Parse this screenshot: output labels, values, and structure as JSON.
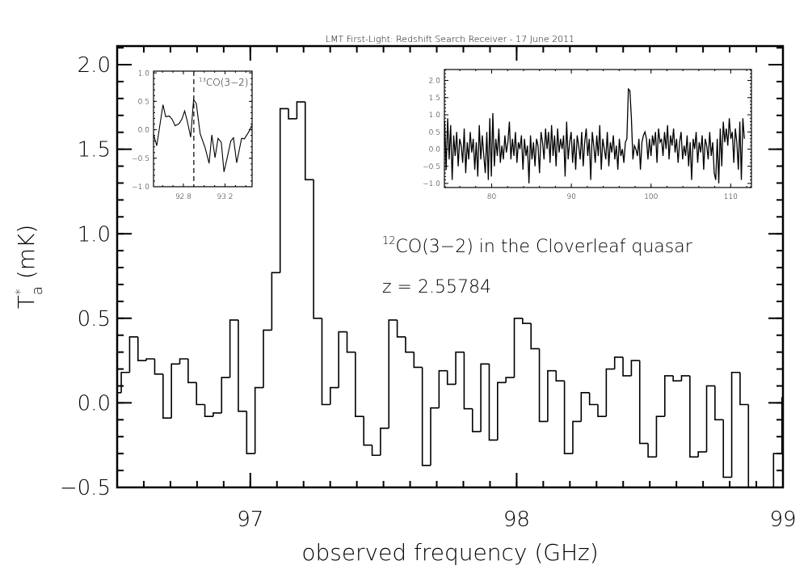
{
  "chart_data": [
    {
      "type": "line",
      "style": "histogram-step",
      "title": "LMT First-Light: Redshift Search Receiver - 17 June 2011",
      "xlabel": "observed frequency (GHz)",
      "ylabel_main": "T",
      "ylabel_sup": "*",
      "ylabel_sub": "a",
      "ylabel_unit": " (mK)",
      "xlim": [
        96.5,
        99.0
      ],
      "ylim": [
        -0.5,
        2.11
      ],
      "xticks": [
        97,
        98,
        99
      ],
      "xtick_labels": [
        "97",
        "98",
        "99"
      ],
      "yticks": [
        2.0,
        1.5,
        1.0,
        0.5,
        0.0,
        -0.5
      ],
      "ytick_labels": [
        "2.0",
        "1.5",
        "1.0",
        "0.5",
        "0.0",
        "−0.5"
      ],
      "annotation_sup": "12",
      "annotation": "CO(3−2) in the Cloverleaf quasar",
      "annotation2": "z = 2.55784",
      "bin_start": 96.484,
      "bin_width": 0.0314,
      "values": [
        0.06,
        0.18,
        0.39,
        0.25,
        0.26,
        0.17,
        -0.09,
        0.23,
        0.26,
        0.12,
        -0.01,
        -0.08,
        -0.06,
        0.15,
        0.49,
        -0.05,
        -0.3,
        0.09,
        0.43,
        0.77,
        1.74,
        1.68,
        1.78,
        1.32,
        0.5,
        -0.01,
        0.09,
        0.42,
        0.3,
        -0.08,
        -0.25,
        -0.31,
        -0.15,
        0.49,
        0.39,
        0.3,
        0.21,
        -0.37,
        -0.03,
        0.19,
        0.11,
        0.3,
        -0.035,
        -0.17,
        0.23,
        -0.22,
        0.12,
        0.15,
        0.5,
        0.47,
        0.32,
        -0.11,
        0.19,
        0.13,
        -0.3,
        -0.11,
        0.06,
        -0.01,
        -0.08,
        0.2,
        0.27,
        0.16,
        0.25,
        -0.24,
        -0.32,
        -0.08,
        0.16,
        0.13,
        0.16,
        -0.32,
        -0.29,
        0.1,
        -0.1,
        -0.44,
        0.18,
        -0.01,
        -0.6,
        -0.6,
        -0.5,
        -0.3,
        0.03
      ]
    },
    {
      "type": "line",
      "name": "inset-13co",
      "label_sup": "13",
      "label": "CO(3−2)",
      "xlim": [
        92.513,
        93.46
      ],
      "ylim": [
        -1.0,
        1.03
      ],
      "xticks": [
        92.8,
        93.2
      ],
      "xtick_labels": [
        "92.8",
        "93.2"
      ],
      "yticks": [
        1.0,
        0.5,
        0.0,
        -0.5,
        -1.0
      ],
      "ytick_labels": [
        "1.0",
        "0.5",
        "0.0",
        "−0.5",
        "−1.0"
      ],
      "line_marker_x": 92.9,
      "x": [
        92.513,
        92.544,
        92.604,
        92.63,
        92.664,
        92.69,
        92.721,
        92.76,
        92.786,
        92.812,
        92.839,
        92.87,
        92.898,
        92.924,
        92.961,
        93.008,
        93.047,
        93.073,
        93.104,
        93.133,
        93.164,
        93.19,
        93.221,
        93.255,
        93.281,
        93.312,
        93.359,
        93.385,
        93.424,
        93.456
      ],
      "y": [
        -0.08,
        -0.28,
        0.44,
        0.23,
        0.24,
        0.19,
        0.07,
        0.11,
        0.19,
        0.33,
        0.14,
        -0.13,
        0.53,
        0.46,
        -0.07,
        -0.31,
        -0.59,
        -0.09,
        -0.49,
        -0.15,
        -0.22,
        -0.74,
        -0.49,
        -0.2,
        -0.14,
        -0.58,
        -0.15,
        -0.16,
        -0.05,
        0.07
      ]
    },
    {
      "type": "line",
      "name": "inset-full-band",
      "xlim": [
        74.07,
        112.6
      ],
      "ylim": [
        -1.12,
        2.32
      ],
      "xticks": [
        80,
        90,
        100,
        110
      ],
      "xtick_labels": [
        "80",
        "90",
        "100",
        "110"
      ],
      "yticks": [
        2.0,
        1.5,
        1.0,
        0.5,
        0.0,
        -0.5,
        -1.0
      ],
      "ytick_labels": [
        "2.0",
        "1.5",
        "1.0",
        "0.5",
        "0.0",
        "−0.5",
        "−1.0"
      ],
      "x_start": 74.1,
      "x_step": 0.189,
      "values": [
        0.8,
        -0.6,
        0.9,
        -0.3,
        0.7,
        -0.9,
        0.4,
        -0.2,
        0.5,
        -0.5,
        0.3,
        0.1,
        -0.4,
        0.6,
        -0.7,
        0.2,
        -0.3,
        0.5,
        -0.1,
        0.3,
        -0.6,
        0.2,
        -0.8,
        0.7,
        -0.3,
        0.4,
        -0.2,
        -0.7,
        0.5,
        -0.9,
        0.9,
        -0.8,
        1.05,
        -0.5,
        0.3,
        -0.2,
        0.6,
        -0.4,
        0.1,
        -0.3,
        0.4,
        -0.1,
        0.2,
        0.8,
        -0.3,
        0.3,
        -0.2,
        0.5,
        -0.4,
        0.2,
        0.0,
        0.4,
        -0.6,
        0.3,
        -0.2,
        0.1,
        -1.0,
        0.4,
        -0.3,
        0.2,
        -0.5,
        0.3,
        0.1,
        -0.7,
        0.5,
        0.2,
        -0.3,
        0.6,
        0.0,
        0.5,
        -0.4,
        0.7,
        -0.2,
        0.4,
        -0.5,
        0.6,
        -0.1,
        0.3,
        0.0,
        0.4,
        -0.8,
        0.8,
        -0.3,
        0.2,
        0.5,
        -0.4,
        0.3,
        -0.6,
        0.4,
        0.1,
        -0.3,
        0.5,
        -0.5,
        0.2,
        0.6,
        -0.2,
        0.3,
        -0.9,
        0.5,
        0.1,
        -0.4,
        0.4,
        -0.2,
        0.7,
        -0.6,
        0.3,
        0.0,
        -0.3,
        0.5,
        -0.5,
        0.2,
        -0.1,
        0.4,
        -0.3,
        0.1,
        -0.6,
        0.3,
        -0.2,
        0.0,
        -0.4,
        0.2,
        0.3,
        1.75,
        1.7,
        0.9,
        -0.3,
        0.1,
        0.0,
        -0.2,
        0.3,
        -0.6,
        0.2,
        0.4,
        0.5,
        0.3,
        -0.3,
        0.3,
        -0.2,
        0.4,
        0.1,
        0.5,
        -0.4,
        0.6,
        0.2,
        0.3,
        -0.2,
        0.5,
        0.0,
        0.7,
        -0.3,
        0.4,
        0.1,
        0.6,
        -0.1,
        0.3,
        -0.4,
        0.2,
        0.5,
        -0.3,
        0.1,
        -0.2,
        0.4,
        -0.5,
        0.2,
        -0.9,
        0.3,
        0.0,
        0.5,
        -0.4,
        0.2,
        -0.1,
        0.4,
        -0.6,
        0.3,
        0.1,
        -0.3,
        0.5,
        -0.2,
        0.2,
        -0.7,
        -0.9,
        0.3,
        -1.0,
        0.6,
        -0.5,
        0.8,
        0.2,
        0.6,
        0.1,
        0.9,
        0.3,
        0.5,
        -0.4,
        0.6,
        0.2,
        -0.6,
        0.8,
        -0.9,
        0.9,
        0.3
      ]
    }
  ]
}
